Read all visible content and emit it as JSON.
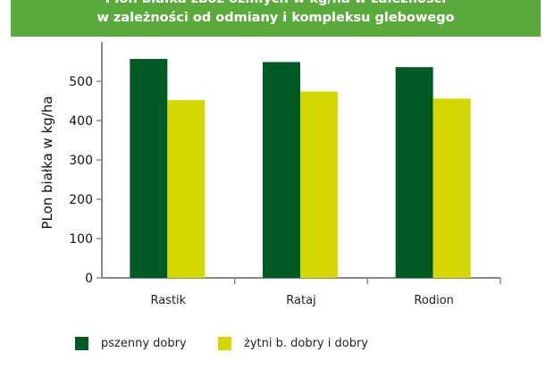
{
  "chart_data": {
    "type": "bar",
    "title_line1": "Plon białka zbóż ozimych w kg/ha w zależności",
    "title_line2": "w zależności od odmiany i kompleksu glebowego",
    "ylabel": "PLon białka w kg/ha",
    "xlabel": "",
    "categories": [
      "Rastik",
      "Rataj",
      "Rodion"
    ],
    "series": [
      {
        "name": "pszenny dobry",
        "color": "#005a23",
        "values": [
          557,
          549,
          536
        ]
      },
      {
        "name": "żytni b. dobry i dobry",
        "color": "#d4d800",
        "values": [
          452,
          474,
          456
        ]
      }
    ],
    "yticks": [
      0,
      100,
      200,
      300,
      400,
      500
    ],
    "ylim": [
      0,
      600
    ],
    "grid": false,
    "legend_position": "bottom"
  }
}
